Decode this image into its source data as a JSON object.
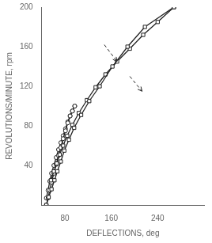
{
  "chart_data": {
    "type": "line",
    "xlabel": "DEFLECTIONS, deg",
    "ylabel": "REVOLUTIONS/MINUTE, rpm",
    "xlim": [
      40,
      320
    ],
    "ylim": [
      0,
      200
    ],
    "xticks": [
      80,
      160,
      240
    ],
    "yticks": [
      40,
      80,
      120,
      160,
      200
    ],
    "grid": false,
    "color": "#222222",
    "series": [
      {
        "marker": "square",
        "x": [
          48,
          52,
          57,
          62,
          67,
          73,
          79,
          87,
          96,
          108,
          122,
          140,
          162,
          188,
          218,
          268
        ],
        "values": [
          0,
          8,
          16,
          25,
          34,
          44,
          55,
          66,
          78,
          91,
          105,
          120,
          140,
          160,
          180,
          200
        ]
      },
      {
        "marker": "square",
        "x": [
          268,
          240,
          215,
          192,
          170,
          150,
          133,
          118,
          104,
          93,
          84,
          77,
          71,
          66,
          61,
          56
        ],
        "values": [
          200,
          185,
          172,
          158,
          145,
          132,
          119,
          106,
          93,
          81,
          70,
          60,
          51,
          42,
          34,
          25
        ]
      },
      {
        "marker": "circle",
        "x": [
          48,
          51,
          54,
          57,
          61,
          65,
          69,
          73,
          77,
          81,
          85,
          89,
          93,
          97
        ],
        "values": [
          0,
          7,
          15,
          23,
          32,
          41,
          50,
          58,
          67,
          75,
          83,
          90,
          95,
          100
        ]
      },
      {
        "marker": "circle",
        "x": [
          97,
          93,
          89,
          85,
          81,
          77,
          73,
          69,
          65,
          61,
          57,
          54,
          51,
          48
        ],
        "values": [
          100,
          95,
          90,
          84,
          77,
          70,
          63,
          56,
          48,
          40,
          32,
          24,
          15,
          7
        ]
      }
    ],
    "arrows": [
      {
        "x": [
          148,
          170
        ],
        "y": [
          162,
          145
        ],
        "line_style": "dashed"
      },
      {
        "x": [
          192,
          213
        ],
        "y": [
          130,
          115
        ],
        "line_style": "dashed"
      }
    ]
  }
}
